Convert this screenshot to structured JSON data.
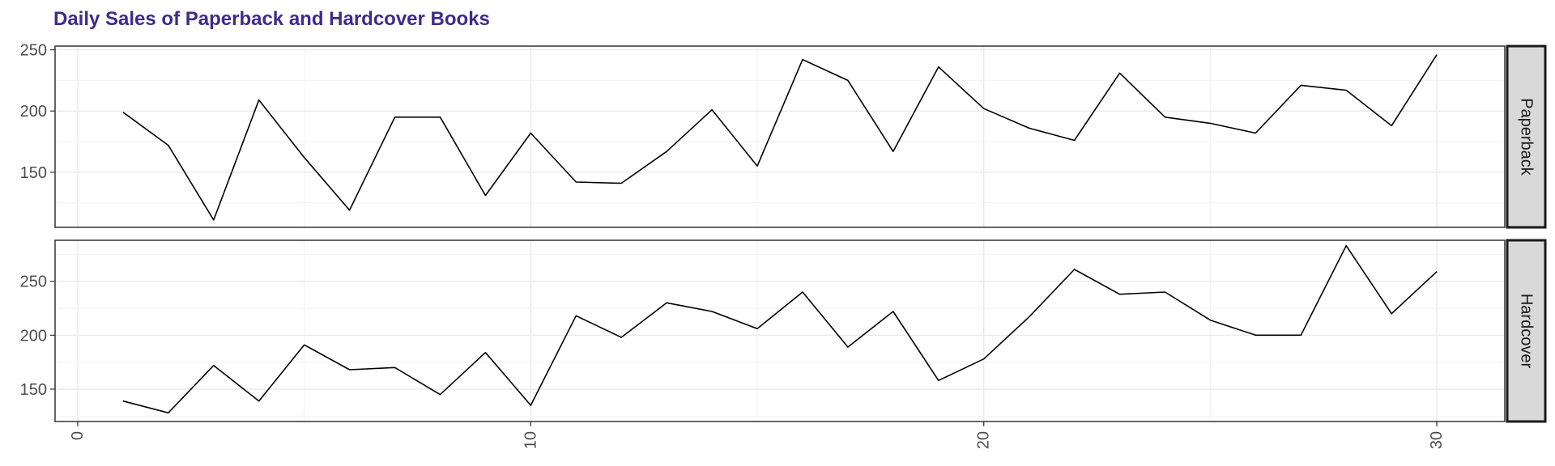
{
  "chart_data": {
    "type": "line",
    "title": "Daily Sales of Paperback and Hardcover Books",
    "xlabel": "",
    "ylabel": "",
    "x_ticks": [
      0,
      10,
      20,
      30
    ],
    "xlim": [
      -0.5,
      31.5
    ],
    "grid": true,
    "facets": [
      {
        "name": "Paperback",
        "ylim": [
          105,
          253
        ],
        "y_ticks": [
          150,
          200,
          250
        ],
        "x": [
          1,
          2,
          3,
          4,
          5,
          6,
          7,
          8,
          9,
          10,
          11,
          12,
          13,
          14,
          15,
          16,
          17,
          18,
          19,
          20,
          21,
          22,
          23,
          24,
          25,
          26,
          27,
          28,
          29,
          30
        ],
        "values": [
          199,
          172,
          111,
          209,
          162,
          119,
          195,
          195,
          131,
          182,
          142,
          141,
          167,
          201,
          155,
          242,
          225,
          167,
          236,
          202,
          186,
          176,
          231,
          195,
          190,
          182,
          221,
          217,
          188,
          246
        ]
      },
      {
        "name": "Hardcover",
        "ylim": [
          120,
          288
        ],
        "y_ticks": [
          150,
          200,
          250
        ],
        "x": [
          1,
          2,
          3,
          4,
          5,
          6,
          7,
          8,
          9,
          10,
          11,
          12,
          13,
          14,
          15,
          16,
          17,
          18,
          19,
          20,
          21,
          22,
          23,
          24,
          25,
          26,
          27,
          28,
          29,
          30
        ],
        "values": [
          139,
          128,
          172,
          139,
          191,
          168,
          170,
          145,
          184,
          135,
          218,
          198,
          230,
          222,
          206,
          240,
          189,
          222,
          158,
          178,
          217,
          261,
          238,
          240,
          214,
          200,
          200,
          283,
          220,
          259
        ]
      }
    ],
    "line_color": "#000000",
    "title_color": "#3f2a8c"
  }
}
